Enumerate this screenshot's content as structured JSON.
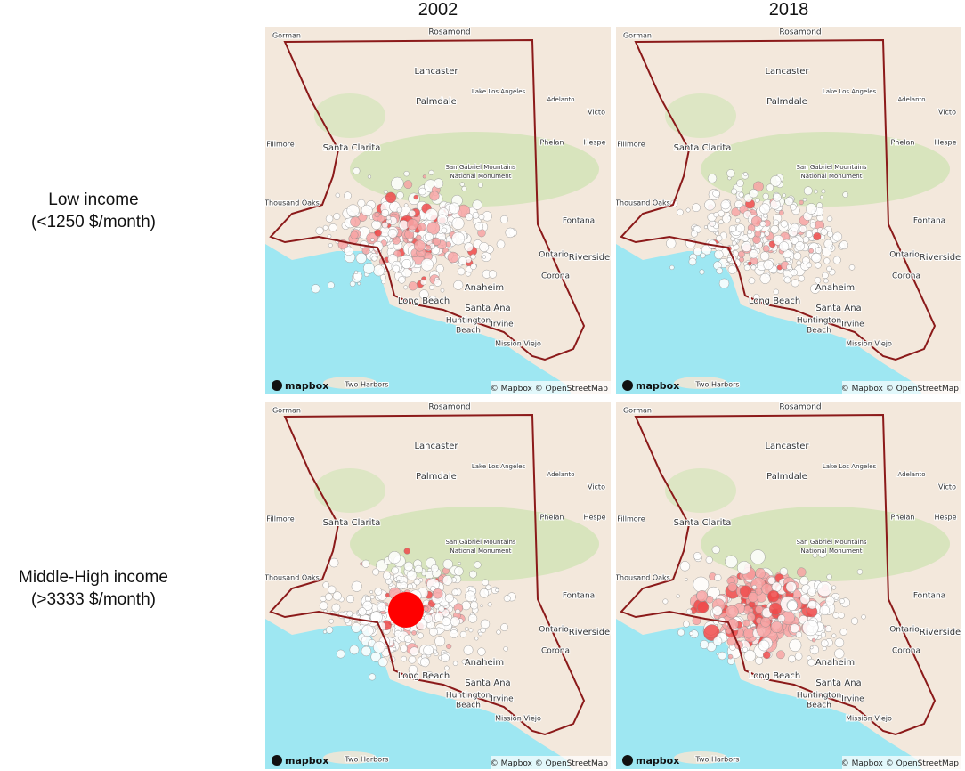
{
  "columns": [
    "2002",
    "2018"
  ],
  "rows": [
    {
      "label": "Low income",
      "sublabel": "(<1250 $/month)"
    },
    {
      "label": "Middle-High income",
      "sublabel": "(>3333 $/month)"
    }
  ],
  "map": {
    "places": [
      "Rosamond",
      "Gorman",
      "Lancaster",
      "Lake Los Angeles",
      "Adelanto",
      "Palmdale",
      "Victo",
      "Santa Clarita",
      "Fillmore",
      "Phelan",
      "Hespe",
      "San Gabriel Mountains",
      "National Monument",
      "Thousand Oaks",
      "Fontana",
      "Ontario",
      "Riverside",
      "Corona",
      "Anaheim",
      "Long Beach",
      "Santa Ana",
      "Huntington",
      "Beach",
      "Irvine",
      "Mission Viejo",
      "Two Harbors"
    ],
    "logo": "mapbox",
    "attribution": "© Mapbox © OpenStreetMap"
  }
}
